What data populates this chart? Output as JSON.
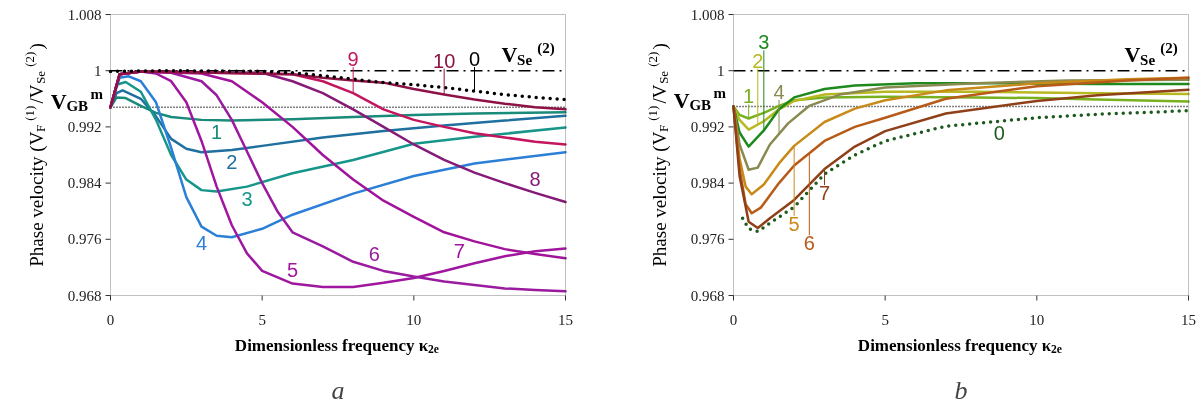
{
  "chart_data": [
    {
      "type": "line",
      "xlabel": "Dimensionless frequency κ$_{2e}$",
      "ylabel": "Phase velocity (V$_{F}$$^{(1)}$/V$_{Se}$$^{(2)}$)",
      "xlim": [
        0,
        15
      ],
      "ylim": [
        0.968,
        1.008
      ],
      "xticks": [
        0,
        5,
        10,
        15
      ],
      "yticks": [
        0.968,
        0.976,
        0.984,
        0.992,
        1,
        1.008
      ],
      "series": [
        {
          "color": "#1a8a7a",
          "x": [
            0,
            0.2,
            0.5,
            1,
            1.5,
            2,
            3,
            4,
            6,
            8,
            10,
            12,
            15
          ],
          "values": [
            0.9948,
            0.9962,
            0.9961,
            0.995,
            0.994,
            0.9934,
            0.993,
            0.9929,
            0.9931,
            0.9934,
            0.9937,
            0.9939,
            0.9941
          ]
        },
        {
          "color": "#1f6f9f",
          "x": [
            0,
            0.2,
            0.4,
            1,
            1.5,
            2,
            2.5,
            3,
            4,
            5,
            7,
            9,
            11,
            13,
            15
          ],
          "values": [
            0.9948,
            0.9968,
            0.9972,
            0.996,
            0.9935,
            0.9903,
            0.9889,
            0.9884,
            0.9887,
            0.9893,
            0.9905,
            0.9914,
            0.9922,
            0.9929,
            0.9936
          ]
        },
        {
          "color": "#16958a",
          "x": [
            0,
            0.2,
            0.5,
            1,
            1.5,
            2,
            2.5,
            3,
            3.5,
            4.5,
            6,
            8,
            10,
            12,
            15
          ],
          "values": [
            0.9948,
            0.998,
            0.9984,
            0.997,
            0.993,
            0.988,
            0.9845,
            0.983,
            0.9828,
            0.9835,
            0.9854,
            0.9873,
            0.9896,
            0.9906,
            0.9919
          ]
        },
        {
          "color": "#2b7fd6",
          "x": [
            0,
            0.3,
            0.6,
            1,
            1.5,
            2,
            2.5,
            3,
            3.5,
            4,
            5,
            6,
            8,
            10,
            12,
            15
          ],
          "values": [
            0.9948,
            0.999,
            0.9992,
            0.9985,
            0.9955,
            0.989,
            0.982,
            0.9778,
            0.9765,
            0.9763,
            0.9775,
            0.9795,
            0.9825,
            0.985,
            0.9868,
            0.9884
          ]
        },
        {
          "color": "#a0169e",
          "x": [
            0,
            0.3,
            1,
            1.5,
            2,
            2.5,
            3,
            3.5,
            4,
            4.5,
            5,
            6,
            7,
            8,
            9,
            10,
            11,
            12,
            13,
            14,
            15
          ],
          "values": [
            0.9948,
            0.9995,
            0.9999,
            0.9996,
            0.9985,
            0.9955,
            0.99,
            0.9835,
            0.978,
            0.974,
            0.9715,
            0.9697,
            0.9692,
            0.9692,
            0.9698,
            0.9705,
            0.9715,
            0.9726,
            0.9736,
            0.9743,
            0.9747
          ]
        },
        {
          "color": "#9a1aa0",
          "x": [
            0,
            0.3,
            1,
            2,
            3,
            3.5,
            4,
            4.5,
            5,
            5.5,
            6,
            7,
            8,
            9,
            10,
            11,
            12,
            13,
            14,
            15
          ],
          "values": [
            0.9948,
            0.9995,
            0.9999,
            0.9997,
            0.9985,
            0.9965,
            0.993,
            0.9885,
            0.984,
            0.98,
            0.977,
            0.975,
            0.9728,
            0.9715,
            0.9707,
            0.97,
            0.9695,
            0.969,
            0.9688,
            0.9686
          ]
        },
        {
          "color": "#a0139a",
          "x": [
            0,
            0.3,
            1,
            3,
            4,
            5,
            6,
            7,
            8,
            9,
            10,
            11,
            12,
            13,
            14,
            15
          ],
          "values": [
            0.9948,
            0.9995,
            0.9999,
            0.9996,
            0.9985,
            0.9955,
            0.992,
            0.988,
            0.9845,
            0.9815,
            0.9792,
            0.977,
            0.9757,
            0.9746,
            0.9739,
            0.9733
          ]
        },
        {
          "color": "#861a78",
          "x": [
            0,
            0.3,
            1,
            5,
            6,
            7,
            8,
            9,
            10,
            11,
            12,
            13,
            14,
            15
          ],
          "values": [
            0.9948,
            0.9995,
            0.9999,
            0.9997,
            0.9985,
            0.9968,
            0.9945,
            0.992,
            0.9895,
            0.9873,
            0.9855,
            0.984,
            0.9826,
            0.9813
          ]
        },
        {
          "color": "#c4165e",
          "x": [
            0,
            0.3,
            1,
            6,
            7,
            8,
            9,
            10,
            11,
            12,
            13,
            14,
            15
          ],
          "values": [
            0.9948,
            0.9995,
            0.9999,
            0.9995,
            0.9985,
            0.9968,
            0.9945,
            0.993,
            0.992,
            0.9911,
            0.9905,
            0.9899,
            0.9895
          ]
        },
        {
          "color": "#8e1246",
          "x": [
            0,
            0.3,
            1,
            6,
            7,
            8,
            9,
            10,
            11,
            12,
            13,
            14,
            15
          ],
          "values": [
            0.9948,
            0.9995,
            0.9999,
            0.9995,
            0.999,
            0.9986,
            0.9983,
            0.9974,
            0.9966,
            0.9959,
            0.9953,
            0.9948,
            0.9945
          ]
        },
        {
          "color": "#000000",
          "line_style": "dotted",
          "x": [
            0,
            2,
            5,
            6,
            7,
            8,
            9,
            10,
            11,
            12,
            13,
            14,
            15
          ],
          "values": [
            0.9999,
            1.0,
            0.9999,
            0.9997,
            0.9993,
            0.9988,
            0.9983,
            0.998,
            0.9976,
            0.9971,
            0.9966,
            0.9962,
            0.9959
          ]
        }
      ],
      "ref_lines": [
        {
          "axis": "y",
          "value": 1,
          "label": "V$_{Se}$$^{(2)}$",
          "line_style": "dashdot",
          "color": "#000000"
        },
        {
          "axis": "y",
          "value": 0.9948,
          "label": "V$_{GB}$$^{m}$",
          "line_style": "dotted",
          "color": "#000000"
        }
      ],
      "annotations": [
        {
          "text": "1",
          "x": 3.5,
          "y": 0.99295
        },
        {
          "text": "2",
          "x": 4,
          "y": 0.9887
        },
        {
          "text": "3",
          "x": 4.5,
          "y": 0.9835
        },
        {
          "text": "4",
          "x": 3,
          "y": 0.9778
        },
        {
          "text": "5",
          "x": 6,
          "y": 0.9697
        },
        {
          "text": "6",
          "x": 8.7,
          "y": 0.97189
        },
        {
          "text": "7",
          "x": 11.5,
          "y": 0.97635
        },
        {
          "text": "8",
          "x": 14,
          "y": 0.9826
        },
        {
          "text": "9",
          "x": 8,
          "y": 0.9968
        },
        {
          "text": "10",
          "x": 11,
          "y": 0.9966
        },
        {
          "text": "0",
          "x": 12,
          "y": 0.9971
        },
        "a"
      ]
    },
    {
      "type": "line",
      "xlabel": "Dimensionless frequency κ$_{2e}$",
      "ylabel": "Phase velocity (V$_{F}$$^{(1)}$/V$_{Se}$$^{(2)}$)",
      "xlim": [
        0,
        15
      ],
      "ylim": [
        0.968,
        1.008
      ],
      "xticks": [
        0,
        5,
        10,
        15
      ],
      "yticks": [
        0.968,
        0.976,
        0.984,
        0.992,
        1,
        1.008
      ],
      "series": [
        {
          "color": "#78b020",
          "x": [
            0,
            0.2,
            0.5,
            1,
            1.5,
            2,
            3,
            5,
            8,
            10,
            12,
            15
          ],
          "values": [
            0.9949,
            0.9937,
            0.9932,
            0.994,
            0.995,
            0.9958,
            0.9962,
            0.9963,
            0.9962,
            0.9961,
            0.9959,
            0.9956
          ]
        },
        {
          "color": "#b8b820",
          "x": [
            0,
            0.2,
            0.5,
            1,
            1.5,
            2,
            3,
            5,
            8,
            10,
            12,
            15
          ],
          "values": [
            0.9949,
            0.993,
            0.9916,
            0.9928,
            0.9945,
            0.9957,
            0.9966,
            0.997,
            0.997,
            0.9969,
            0.9968,
            0.9967
          ]
        },
        {
          "color": "#1e8a1e",
          "x": [
            0,
            0.2,
            0.5,
            1,
            1.5,
            2,
            3,
            4,
            6,
            9,
            12,
            15
          ],
          "values": [
            0.9949,
            0.9912,
            0.9892,
            0.9915,
            0.9945,
            0.9962,
            0.9974,
            0.9979,
            0.9982,
            0.9982,
            0.9981,
            0.9981
          ]
        },
        {
          "color": "#8a8a50",
          "x": [
            0,
            0.2,
            0.5,
            0.8,
            1.2,
            1.8,
            2.5,
            3.5,
            5,
            8,
            11,
            15
          ],
          "values": [
            0.9949,
            0.9895,
            0.9859,
            0.9862,
            0.9895,
            0.9925,
            0.995,
            0.9966,
            0.9976,
            0.9982,
            0.9986,
            0.9987
          ]
        },
        {
          "color": "#c88a18",
          "x": [
            0,
            0.2,
            0.4,
            0.6,
            1,
            1.5,
            2,
            3,
            4,
            5,
            7,
            10,
            13,
            15
          ],
          "values": [
            0.9949,
            0.9875,
            0.9835,
            0.9824,
            0.9838,
            0.9868,
            0.9893,
            0.9927,
            0.9946,
            0.9958,
            0.9972,
            0.9982,
            0.9988,
            0.999
          ]
        },
        {
          "color": "#b85a18",
          "x": [
            0,
            0.2,
            0.4,
            0.6,
            0.9,
            1.5,
            2,
            3,
            4,
            5,
            7,
            10,
            13,
            15
          ],
          "values": [
            0.9949,
            0.986,
            0.981,
            0.9797,
            0.9805,
            0.984,
            0.9865,
            0.99,
            0.992,
            0.9933,
            0.996,
            0.9978,
            0.9986,
            0.999
          ]
        },
        {
          "color": "#904018",
          "x": [
            0,
            0.2,
            0.5,
            0.8,
            1.2,
            2,
            3,
            4,
            5,
            7,
            10,
            12,
            15
          ],
          "values": [
            0.9949,
            0.985,
            0.9785,
            0.9776,
            0.979,
            0.9816,
            0.986,
            0.9892,
            0.9914,
            0.9939,
            0.9957,
            0.9965,
            0.9973
          ]
        },
        {
          "color": "#1e5a1e",
          "line_style": "dotted",
          "x": [
            0.3,
            0.5,
            0.8,
            1.2,
            2,
            3,
            4,
            5,
            7,
            10,
            12,
            15
          ],
          "values": [
            0.979,
            0.9775,
            0.9771,
            0.9783,
            0.9806,
            0.9853,
            0.988,
            0.99,
            0.9921,
            0.9933,
            0.9938,
            0.9943
          ]
        }
      ],
      "ref_lines": [
        {
          "axis": "y",
          "value": 1,
          "label": "V$_{Se}$$^{(2)}$",
          "line_style": "dashdot",
          "color": "#000000"
        },
        {
          "axis": "y",
          "value": 0.9949,
          "label": "V$_{GB}$$^{m}$",
          "line_style": "dotted",
          "color": "#000000"
        }
      ],
      "annotations": [
        {
          "text": "1",
          "x": 0.5,
          "y": 0.9932
        },
        {
          "text": "2",
          "x": 0.8,
          "y": 0.99232
        },
        {
          "text": "3",
          "x": 1,
          "y": 0.9915
        },
        {
          "text": "4",
          "x": 1.5,
          "y": 0.991
        },
        {
          "text": "5",
          "x": 2,
          "y": 0.9893
        },
        {
          "text": "6",
          "x": 2.5,
          "y": 0.98825
        },
        {
          "text": "7",
          "x": 3,
          "y": 0.986
        },
        {
          "text": "0",
          "x": 8.76,
          "y": 0.9928
        },
        "b"
      ]
    }
  ]
}
